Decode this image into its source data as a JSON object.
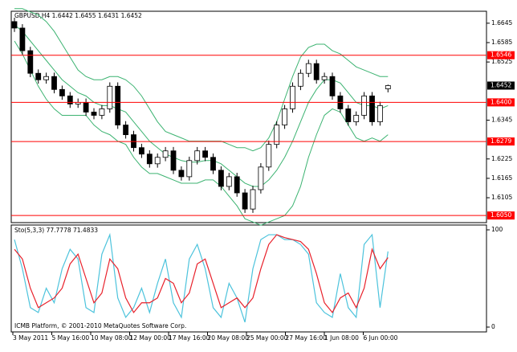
{
  "chart_data": [
    {
      "type": "candlestick",
      "title": "GBPUSD,H4  1.6442 1.6455 1.6431 1.6452",
      "open": [
        1.665,
        1.663,
        1.656,
        1.649,
        1.647,
        1.648,
        1.644,
        1.642,
        1.6395,
        1.64,
        1.637,
        1.636,
        1.638,
        1.645,
        1.633,
        1.63,
        1.626,
        1.624,
        1.621,
        1.623,
        1.625,
        1.619,
        1.617,
        1.622,
        1.625,
        1.623,
        1.619,
        1.614,
        1.617,
        1.612,
        1.607,
        1.613,
        1.62,
        1.627,
        1.633,
        1.638,
        1.645,
        1.649,
        1.652,
        1.647,
        1.648,
        1.642,
        1.638,
        1.634,
        1.636,
        1.642,
        1.634,
        1.6442
      ],
      "high": [
        1.6662,
        1.6642,
        1.6572,
        1.6502,
        1.6492,
        1.6492,
        1.6452,
        1.6432,
        1.6412,
        1.6412,
        1.6382,
        1.6392,
        1.6462,
        1.6462,
        1.6342,
        1.6312,
        1.6272,
        1.6252,
        1.6242,
        1.6262,
        1.6262,
        1.6202,
        1.6232,
        1.6262,
        1.6262,
        1.6242,
        1.6202,
        1.6182,
        1.6182,
        1.6132,
        1.6142,
        1.6212,
        1.6282,
        1.6342,
        1.6392,
        1.6462,
        1.6502,
        1.6532,
        1.6532,
        1.6492,
        1.6492,
        1.6432,
        1.6392,
        1.6372,
        1.6432,
        1.6432,
        1.6402,
        1.6455
      ],
      "low": [
        1.6618,
        1.6548,
        1.6478,
        1.6458,
        1.6458,
        1.6428,
        1.6408,
        1.6383,
        1.6383,
        1.6358,
        1.6348,
        1.6348,
        1.6368,
        1.6318,
        1.6288,
        1.6248,
        1.6228,
        1.6198,
        1.6198,
        1.6218,
        1.6178,
        1.6158,
        1.6158,
        1.6208,
        1.6218,
        1.6178,
        1.6128,
        1.6128,
        1.6108,
        1.6058,
        1.6058,
        1.6118,
        1.6188,
        1.6258,
        1.6318,
        1.6368,
        1.6438,
        1.6478,
        1.6458,
        1.6458,
        1.6408,
        1.6368,
        1.6328,
        1.6328,
        1.6348,
        1.6328,
        1.6328,
        1.6431
      ],
      "close": [
        1.663,
        1.656,
        1.649,
        1.647,
        1.648,
        1.644,
        1.642,
        1.6395,
        1.64,
        1.637,
        1.636,
        1.638,
        1.645,
        1.633,
        1.63,
        1.626,
        1.624,
        1.621,
        1.623,
        1.625,
        1.619,
        1.617,
        1.622,
        1.625,
        1.623,
        1.619,
        1.614,
        1.617,
        1.612,
        1.607,
        1.613,
        1.62,
        1.627,
        1.633,
        1.638,
        1.645,
        1.649,
        1.652,
        1.647,
        1.648,
        1.642,
        1.638,
        1.634,
        1.636,
        1.642,
        1.634,
        1.639,
        1.6452
      ],
      "bands": [
        {
          "color": "#3cb371",
          "values": [
            1.669,
            1.669,
            1.668,
            1.667,
            1.665,
            1.662,
            1.658,
            1.654,
            1.65,
            1.648,
            1.647,
            1.647,
            1.648,
            1.648,
            1.647,
            1.645,
            1.642,
            1.638,
            1.634,
            1.631,
            1.63,
            1.629,
            1.628,
            1.628,
            1.628,
            1.628,
            1.628,
            1.627,
            1.626,
            1.626,
            1.625,
            1.626,
            1.629,
            1.634,
            1.641,
            1.648,
            1.654,
            1.657,
            1.658,
            1.658,
            1.656,
            1.655,
            1.653,
            1.651,
            1.65,
            1.649,
            1.648,
            1.648
          ]
        },
        {
          "color": "#3cb371",
          "values": [
            1.664,
            1.662,
            1.659,
            1.656,
            1.653,
            1.65,
            1.647,
            1.645,
            1.643,
            1.642,
            1.64,
            1.639,
            1.639,
            1.638,
            1.637,
            1.634,
            1.631,
            1.628,
            1.626,
            1.624,
            1.623,
            1.622,
            1.6215,
            1.6215,
            1.622,
            1.622,
            1.621,
            1.619,
            1.617,
            1.615,
            1.614,
            1.614,
            1.616,
            1.619,
            1.623,
            1.628,
            1.634,
            1.64,
            1.644,
            1.647,
            1.647,
            1.646,
            1.643,
            1.64,
            1.639,
            1.639,
            1.638,
            1.639
          ]
        },
        {
          "color": "#3cb371",
          "values": [
            1.659,
            1.655,
            1.65,
            1.645,
            1.641,
            1.638,
            1.636,
            1.636,
            1.636,
            1.636,
            1.633,
            1.631,
            1.63,
            1.628,
            1.627,
            1.623,
            1.62,
            1.618,
            1.618,
            1.617,
            1.616,
            1.615,
            1.615,
            1.615,
            1.616,
            1.616,
            1.614,
            1.611,
            1.608,
            1.604,
            1.603,
            1.602,
            1.603,
            1.604,
            1.605,
            1.608,
            1.614,
            1.623,
            1.63,
            1.636,
            1.638,
            1.637,
            1.633,
            1.629,
            1.628,
            1.629,
            1.628,
            1.63
          ]
        }
      ],
      "hlines": [
        {
          "value": 1.6546,
          "label": "1.6546"
        },
        {
          "value": 1.64,
          "label": "1.6400"
        },
        {
          "value": 1.6279,
          "label": "1.6279"
        },
        {
          "value": 1.605,
          "label": "1.6050"
        }
      ],
      "hline_color": "#ff0000",
      "current_price": 1.6452,
      "ylim": [
        1.6028,
        1.6682
      ],
      "yticks": [
        1.6645,
        1.6585,
        1.6525,
        1.6345,
        1.6225,
        1.6165,
        1.6105
      ],
      "x_labels": [
        "3 May 2011",
        "5 May 16:00",
        "10 May 08:00",
        "12 May 00:00",
        "17 May 16:00",
        "20 May 08:00",
        "25 May 00:00",
        "27 May 16:00",
        "1 Jun 08:00",
        "6 Jun 00:00"
      ]
    },
    {
      "type": "line",
      "title": "Sto(5,3,3) 77.7778 71.4833",
      "series": [
        {
          "color": "#4cc3dc",
          "values": [
            90,
            60,
            20,
            15,
            40,
            25,
            60,
            80,
            70,
            20,
            15,
            75,
            95,
            30,
            10,
            20,
            40,
            15,
            45,
            70,
            25,
            10,
            70,
            85,
            60,
            20,
            10,
            45,
            30,
            5,
            60,
            90,
            95,
            95,
            90,
            90,
            85,
            75,
            25,
            15,
            10,
            55,
            20,
            10,
            85,
            95,
            20,
            77.7778
          ]
        },
        {
          "color": "#e8202a",
          "values": [
            80,
            70,
            40,
            20,
            25,
            30,
            40,
            65,
            75,
            50,
            25,
            35,
            70,
            60,
            30,
            15,
            25,
            25,
            30,
            50,
            45,
            25,
            35,
            65,
            70,
            45,
            20,
            25,
            30,
            20,
            30,
            60,
            85,
            95,
            92,
            90,
            88,
            80,
            55,
            25,
            15,
            30,
            35,
            20,
            40,
            80,
            60,
            71.4833
          ]
        }
      ],
      "ylim": [
        0,
        100
      ],
      "yticks": [
        100,
        0
      ],
      "annotation": "ICMB Platform, © 2001-2010 MetaQuotes Software Corp."
    }
  ]
}
